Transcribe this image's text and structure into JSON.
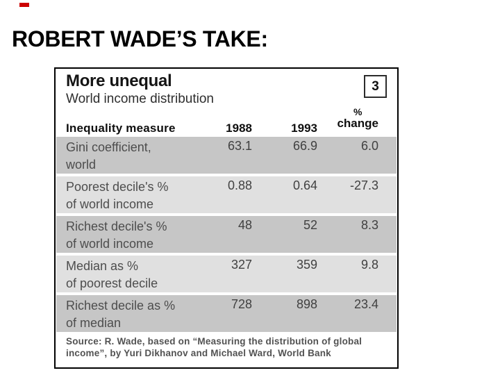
{
  "colors": {
    "accent_red": "#cc0000",
    "row_dark": "#c6c6c6",
    "row_light": "#e0e0e0",
    "figure_border": "#000000"
  },
  "slide": {
    "title": "ROBERT WADE’S TAKE:"
  },
  "figure": {
    "title": "More unequal",
    "subtitle": "World income distribution",
    "badge": "3",
    "header": {
      "measure": "Inequality measure",
      "y1988": "1988",
      "y1993": "1993",
      "pct": "%",
      "change_word": "change"
    },
    "rows": [
      {
        "label1": "Gini coefficient,",
        "label2": "world",
        "v1988": "63.1",
        "v1993": "66.9",
        "change": "6.0"
      },
      {
        "label1": "Poorest decile's %",
        "label2": "of world income",
        "v1988": "0.88",
        "v1993": "0.64",
        "change": "-27.3"
      },
      {
        "label1": "Richest decile's %",
        "label2": "of world income",
        "v1988": "48",
        "v1993": "52",
        "change": "8.3"
      },
      {
        "label1": "Median as %",
        "label2": "of poorest decile",
        "v1988": "327",
        "v1993": "359",
        "change": "9.8"
      },
      {
        "label1": "Richest decile as %",
        "label2": "of median",
        "v1988": "728",
        "v1993": "898",
        "change": "23.4"
      }
    ],
    "source": {
      "line1": "Source: R. Wade, based on “Measuring the distribution of global",
      "line2": "income”, by Yuri Dikhanov and Michael Ward, World Bank"
    }
  },
  "chart_data": {
    "type": "table",
    "title": "More unequal",
    "subtitle": "World income distribution",
    "figure_number": "3",
    "columns": [
      "Inequality measure",
      "1988",
      "1993",
      "% change"
    ],
    "rows": [
      [
        "Gini coefficient, world",
        63.1,
        66.9,
        6.0
      ],
      [
        "Poorest decile's % of world income",
        0.88,
        0.64,
        -27.3
      ],
      [
        "Richest decile's % of world income",
        48,
        52,
        8.3
      ],
      [
        "Median as % of poorest decile",
        327,
        359,
        9.8
      ],
      [
        "Richest decile as % of median",
        728,
        898,
        23.4
      ]
    ],
    "source": "Source: R. Wade, based on “Measuring the distribution of global income”, by Yuri Dikhanov and Michael Ward, World Bank"
  }
}
